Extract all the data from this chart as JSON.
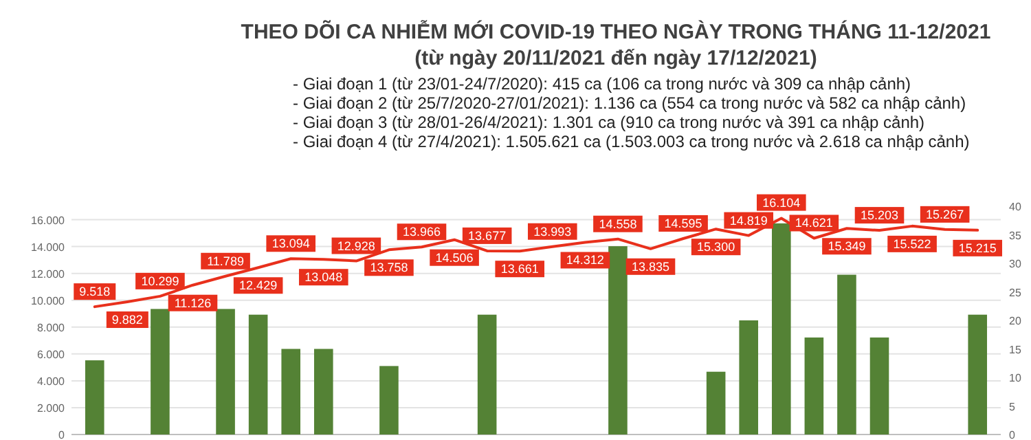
{
  "chart_data": {
    "type": "bar",
    "title": "THEO DÕI CA NHIỄM MỚI COVID-19 THEO NGÀY TRONG THÁNG 11-12/2021",
    "subtitle": "(từ ngày 20/11/2021 đến ngày 17/12/2021)",
    "annotations": [
      "- Giai đoạn 1 (từ 23/01-24/7/2020): 415 ca (106 ca trong nước và 309 ca nhập cảnh)",
      "- Giai đoạn 2 (từ 25/7/2020-27/01/2021): 1.136 ca (554 ca trong nước và 582 ca nhập cảnh)",
      "- Giai đoạn 3 (từ 28/01-26/4/2021): 1.301 ca (910 ca trong nước và 391 ca nhập cảnh)",
      "- Giai đoạn 4 (từ 27/4/2021): 1.505.621 ca (1.503.003 ca trong nước và 2.618 ca nhập cảnh)"
    ],
    "categories": [
      null,
      null,
      null,
      null,
      null,
      null,
      null,
      null,
      null,
      null,
      null,
      null,
      null,
      null,
      null,
      null,
      null,
      null,
      null,
      null,
      null,
      null,
      null,
      null,
      null,
      null,
      null,
      null
    ],
    "series": [
      {
        "axis": "y2",
        "color": "#548235",
        "values": [
          13,
          null,
          22,
          null,
          22,
          21,
          15,
          15,
          null,
          12,
          null,
          null,
          21,
          null,
          null,
          null,
          33,
          null,
          null,
          11,
          20,
          37,
          17,
          28,
          17,
          null,
          null,
          21
        ]
      },
      {
        "type": "line",
        "color": "#e8301c",
        "values": [
          9518,
          9882,
          10299,
          11126,
          11789,
          12429,
          13094,
          13048,
          12928,
          13758,
          13966,
          14506,
          13677,
          13661,
          13993,
          14312,
          14558,
          13835,
          14595,
          15300,
          14819,
          16104,
          14621,
          15349,
          15203,
          15522,
          15267,
          15215
        ],
        "value_labels": [
          "9.518",
          "9.882",
          "10.299",
          "11.126",
          "11.789",
          "12.429",
          "13.094",
          "13.048",
          "12.928",
          "13.758",
          "13.966",
          "14.506",
          "13.677",
          "13.661",
          "13.993",
          "14.312",
          "14.558",
          "13.835",
          "14.595",
          "15.300",
          "14.819",
          "16.104",
          "14.621",
          "15.349",
          "15.203",
          "15.522",
          "15.267",
          "15.215"
        ]
      }
    ],
    "ylim": [
      0,
      17000
    ],
    "yticks": [
      {
        "value": 0,
        "label": "0"
      },
      {
        "value": 2000,
        "label": "2.000"
      },
      {
        "value": 4000,
        "label": "4.000"
      },
      {
        "value": 6000,
        "label": "6.000"
      },
      {
        "value": 8000,
        "label": "8.000"
      },
      {
        "value": 10000,
        "label": "10.000"
      },
      {
        "value": 12000,
        "label": "12.000"
      },
      {
        "value": 14000,
        "label": "14.000"
      },
      {
        "value": 16000,
        "label": "16.000"
      }
    ],
    "y2lim": [
      0,
      40
    ],
    "y2ticks": [
      0,
      5,
      10,
      15,
      20,
      25,
      30,
      35,
      40
    ],
    "grid": "y"
  }
}
